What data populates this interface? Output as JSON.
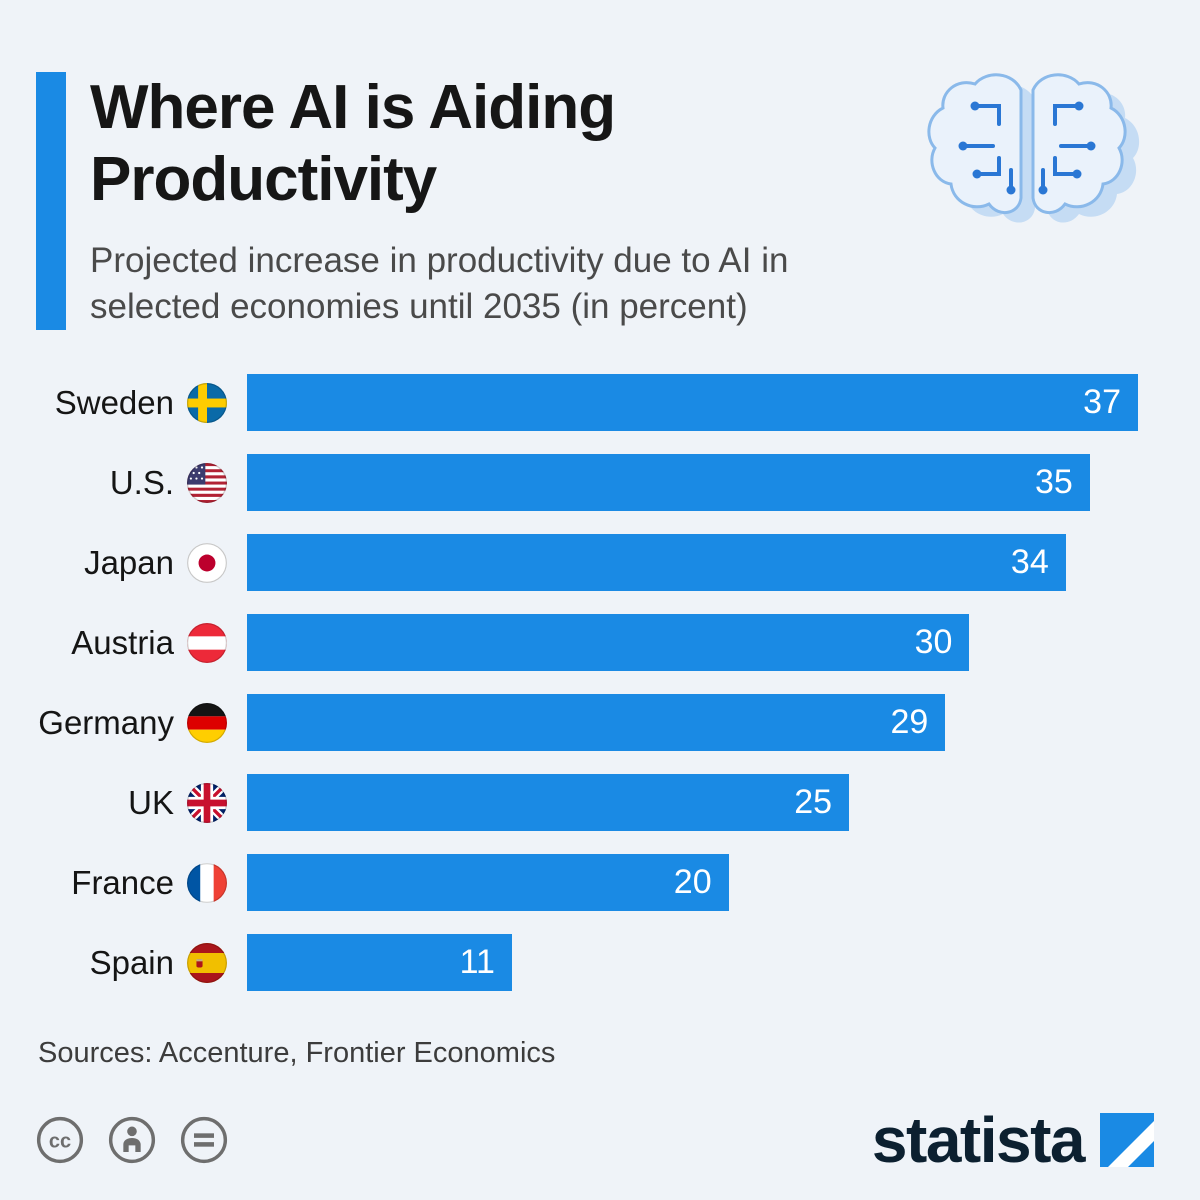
{
  "colors": {
    "background": "#eff3f8",
    "accent": "#1a8ae4",
    "bar": "#1a8ae4",
    "title_text": "#161616",
    "subtitle_text": "#4a4a4a",
    "value_text": "#ffffff",
    "statista_wordmark": "#0c2030"
  },
  "header": {
    "title": "Where AI is Aiding Productivity",
    "subtitle": "Projected increase in productivity due to AI in selected economies until 2035 (in percent)"
  },
  "chart_data": {
    "type": "bar",
    "orientation": "horizontal",
    "title": "Where AI is Aiding Productivity",
    "subtitle": "Projected increase in productivity due to AI in selected economies until 2035 (in percent)",
    "unit": "percent",
    "xlim": [
      0,
      37
    ],
    "grid": false,
    "legend": false,
    "categories": [
      "Sweden",
      "U.S.",
      "Japan",
      "Austria",
      "Germany",
      "UK",
      "France",
      "Spain"
    ],
    "values": [
      37,
      35,
      34,
      30,
      29,
      25,
      20,
      11
    ],
    "flags": [
      "se",
      "us",
      "jp",
      "at",
      "de",
      "gb",
      "fr",
      "es"
    ],
    "value_labels_inside": true
  },
  "footer": {
    "sources": "Sources: Accenture, Frontier Economics",
    "license_icons": [
      "creative-commons",
      "attribution",
      "no-derivatives"
    ],
    "brand": "statista"
  }
}
